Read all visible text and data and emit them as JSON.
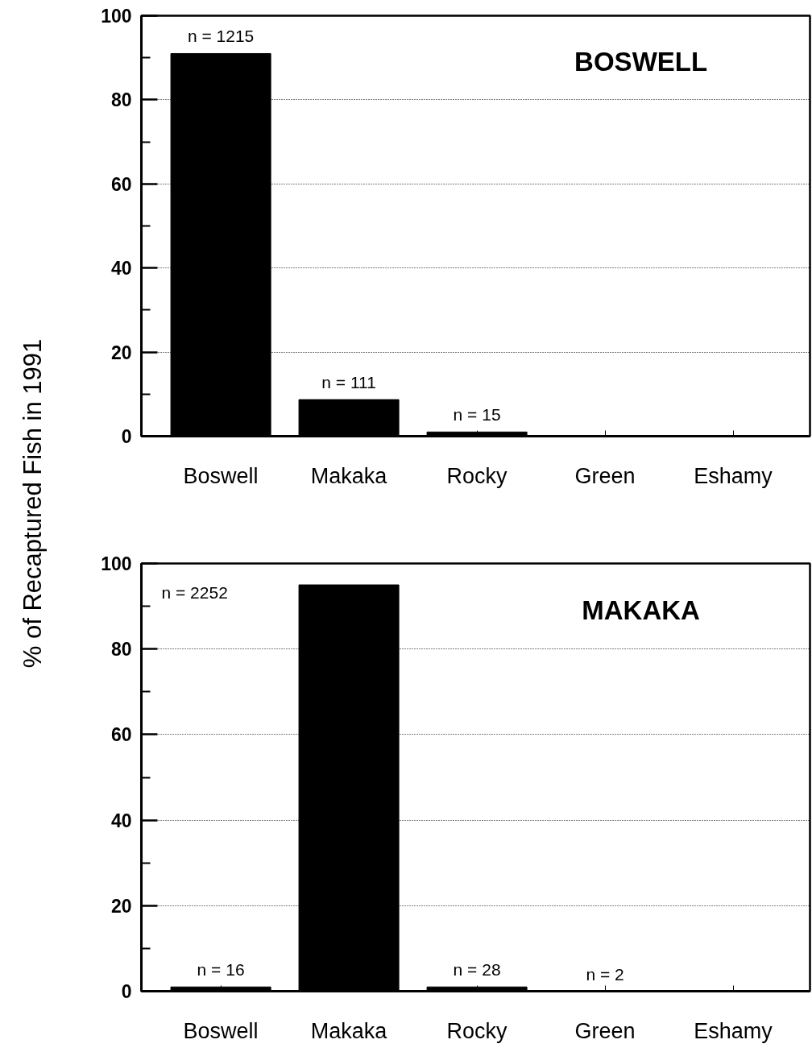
{
  "chart_data": [
    {
      "type": "bar",
      "title": "BOSWELL",
      "ylabel": "% of Recaptured Fish in 1991",
      "categories": [
        "Boswell",
        "Makaka",
        "Rocky",
        "Green",
        "Eshamy"
      ],
      "values": [
        91,
        8.7,
        1,
        0,
        0
      ],
      "color": "#000000",
      "annotations": [
        {
          "text": "n = 1215",
          "x": "Boswell",
          "y": 91
        },
        {
          "text": "n = 111",
          "x": "Makaka",
          "y": 8.7
        },
        {
          "text": "n = 15",
          "x": "Rocky",
          "y": 1
        }
      ],
      "ylim": [
        0,
        100
      ],
      "yticks": [
        0,
        {
          "value": 10,
          "label": null
        },
        20,
        {
          "value": 30,
          "label": null
        },
        40,
        {
          "value": 50,
          "label": null
        },
        60,
        {
          "value": 70,
          "label": null
        },
        80,
        {
          "value": 90,
          "label": null
        },
        100
      ],
      "grid": "y"
    },
    {
      "type": "bar",
      "title": "MAKAKA",
      "categories": [
        "Boswell",
        "Makaka",
        "Rocky",
        "Green",
        "Eshamy"
      ],
      "values": [
        1,
        95,
        1,
        0,
        0
      ],
      "color": "#000000",
      "annotations": [
        {
          "text": "n = 16",
          "x": "Boswell",
          "y": 1
        },
        "n = 2252",
        {
          "text": "n = 28",
          "x": "Rocky",
          "y": 1
        },
        {
          "text": "n = 2",
          "x": "Green",
          "y": 0
        }
      ],
      "ylim": [
        0,
        100
      ],
      "yticks": [
        0,
        {
          "value": 10,
          "label": null
        },
        20,
        {
          "value": 30,
          "label": null
        },
        40,
        {
          "value": 50,
          "label": null
        },
        60,
        {
          "value": 70,
          "label": null
        },
        80,
        {
          "value": 90,
          "label": null
        },
        100
      ],
      "grid": "y"
    }
  ]
}
